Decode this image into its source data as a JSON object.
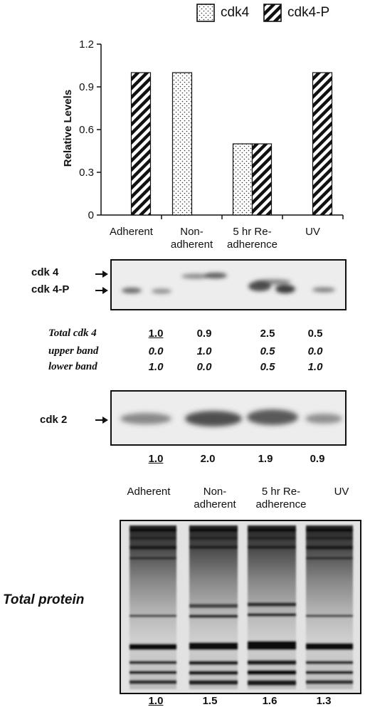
{
  "chart_data": {
    "type": "bar",
    "ylabel": "Relative Levels",
    "ylim": [
      0,
      1.2
    ],
    "yticks": [
      "0",
      "0.3",
      "0.6",
      "0.9",
      "1.2"
    ],
    "tick_values": [
      0,
      0.3,
      0.6,
      0.9,
      1.2
    ],
    "categories": [
      [
        "Adherent"
      ],
      [
        "Non-",
        "adherent"
      ],
      [
        "5 hr Re-",
        "adherence"
      ],
      [
        "UV"
      ]
    ],
    "series": [
      {
        "name": "cdk4",
        "pattern": "dots",
        "values": [
          0,
          1.0,
          0.5,
          0
        ]
      },
      {
        "name": "cdk4-P",
        "pattern": "hatch",
        "values": [
          1.0,
          0,
          0.5,
          1.0
        ]
      }
    ],
    "legend": "top-right",
    "grid": false
  },
  "blot1": {
    "labels": [
      "cdk 4",
      "cdk 4-P"
    ]
  },
  "quant_table": {
    "rows": [
      {
        "label": "Total cdk 4",
        "values": [
          "1.0",
          "0.9",
          "2.5",
          "0.5"
        ],
        "italic": false
      },
      {
        "label": "upper band",
        "values": [
          "0.0",
          "1.0",
          "0.5",
          "0.0"
        ],
        "italic": true
      },
      {
        "label": "lower band",
        "values": [
          "1.0",
          "0.0",
          "0.5",
          "1.0"
        ],
        "italic": true
      }
    ]
  },
  "blot2": {
    "label": "cdk 2",
    "values": [
      "1.0",
      "2.0",
      "1.9",
      "0.9"
    ]
  },
  "total_protein": {
    "lane_labels": [
      [
        "Adherent"
      ],
      [
        "Non-",
        "adherent"
      ],
      [
        "5 hr Re-",
        "adherence"
      ],
      [
        "UV"
      ]
    ],
    "label": "Total protein",
    "values": [
      "1.0",
      "1.5",
      "1.6",
      "1.3"
    ]
  },
  "colors": {
    "ink": "#111111",
    "blot_bg": "#e6e6e6"
  }
}
